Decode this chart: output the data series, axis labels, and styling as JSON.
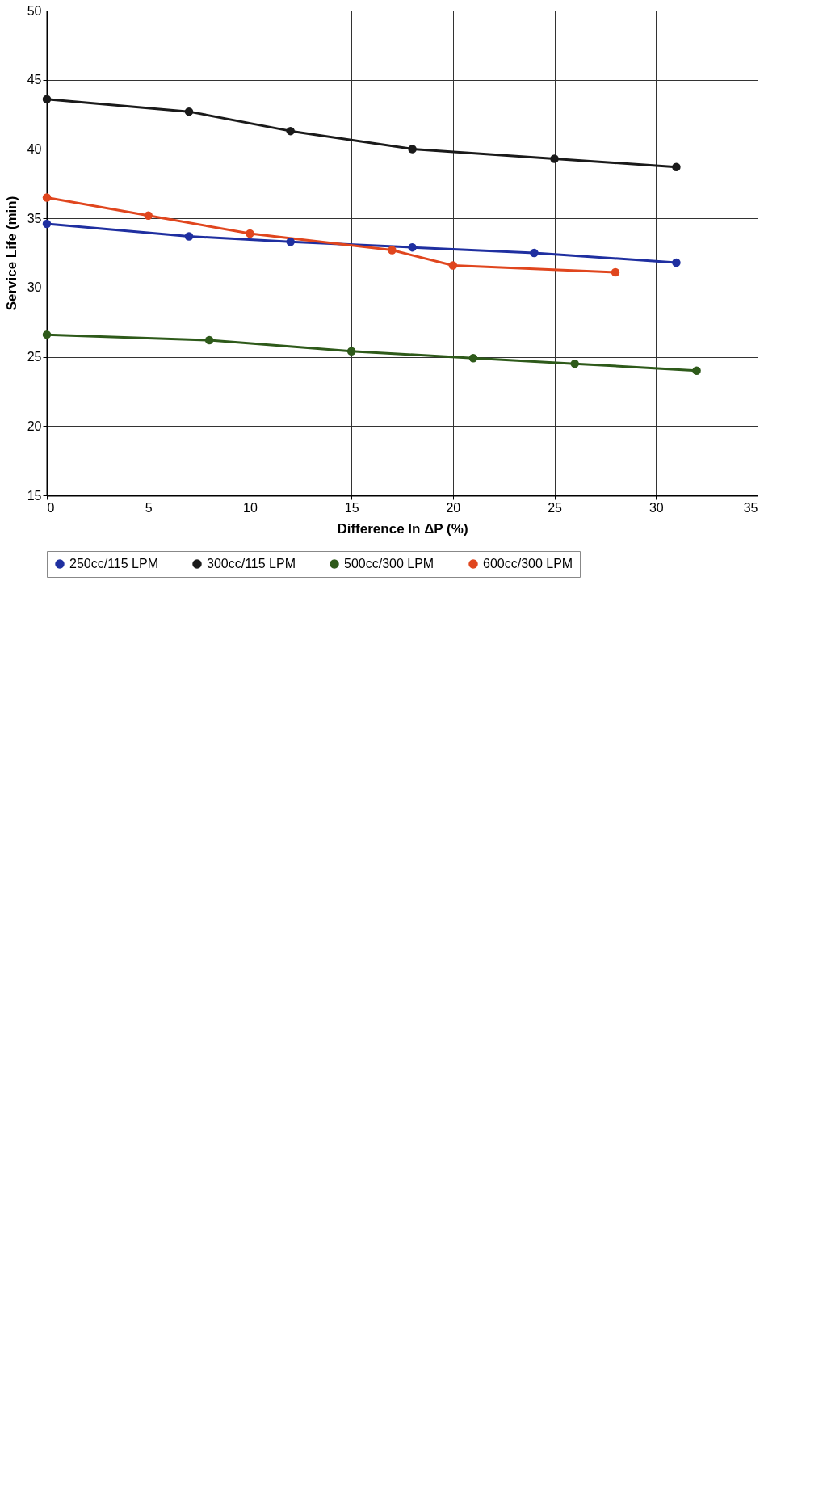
{
  "chart_data": {
    "type": "line",
    "xlabel": "Difference In ΔP (%)",
    "ylabel": "Service Life (min)",
    "xlim": [
      0,
      35
    ],
    "xticks": [
      0,
      5,
      10,
      15,
      20,
      25,
      30,
      35
    ],
    "ylim": [
      15,
      50
    ],
    "yticks": [
      15,
      20,
      25,
      30,
      35,
      40,
      45,
      50
    ],
    "grid": true,
    "legend": "bottom",
    "marker": "circle",
    "line_style": "solid",
    "series": [
      {
        "name": "250cc/115 LPM",
        "color": "#1f2fa0",
        "x": [
          0,
          7,
          12,
          18,
          24,
          31
        ],
        "values": [
          34.6,
          33.7,
          33.3,
          32.9,
          32.5,
          31.8
        ]
      },
      {
        "name": "300cc/115 LPM",
        "color": "#1a1a1a",
        "x": [
          0,
          7,
          12,
          18,
          25,
          31
        ],
        "values": [
          43.6,
          42.7,
          41.3,
          40.0,
          39.3,
          38.7
        ]
      },
      {
        "name": "500cc/300 LPM",
        "color": "#2e5a1a",
        "x": [
          0,
          8,
          15,
          21,
          26,
          32
        ],
        "values": [
          26.6,
          26.2,
          25.4,
          24.9,
          24.5,
          24.0
        ]
      },
      {
        "name": "600cc/300 LPM",
        "color": "#e0461e",
        "x": [
          0,
          5,
          10,
          17,
          20,
          28
        ],
        "values": [
          36.5,
          35.2,
          33.9,
          32.7,
          31.6,
          31.1
        ]
      }
    ]
  }
}
